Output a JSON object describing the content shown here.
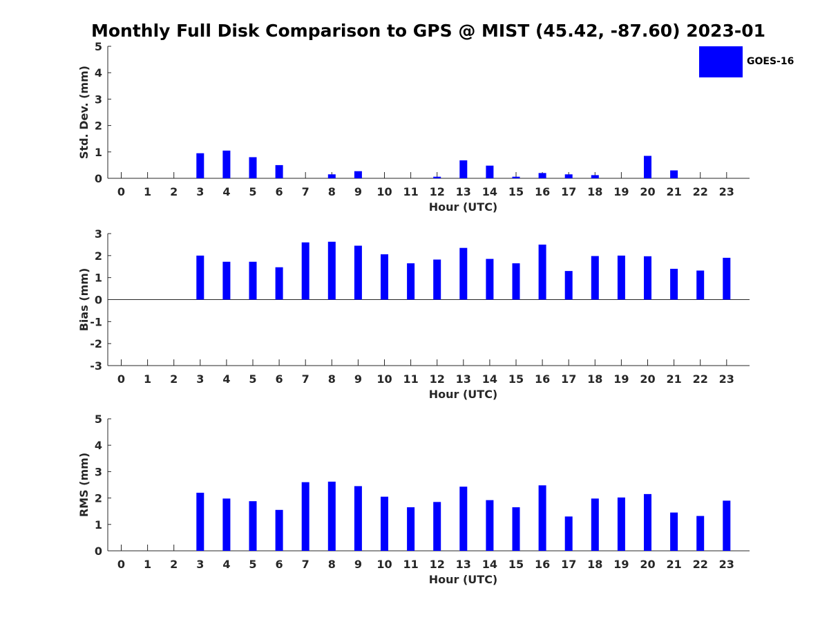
{
  "title": "Monthly Full Disk Comparison to GPS @ MIST (45.42, -87.60) 2023-01",
  "legend": {
    "label": "GOES-16",
    "color": "#0000ff"
  },
  "chart_data": [
    {
      "type": "bar",
      "ylabel": "Std. Dev. (mm)",
      "xlabel": "Hour (UTC)",
      "ylim": [
        0,
        5
      ],
      "yticks": [
        0,
        1,
        2,
        3,
        4,
        5
      ],
      "x": [
        0,
        1,
        2,
        3,
        4,
        5,
        6,
        7,
        8,
        9,
        10,
        11,
        12,
        13,
        14,
        15,
        16,
        17,
        18,
        19,
        20,
        21,
        22,
        23
      ],
      "series": [
        {
          "name": "GOES-16",
          "color": "#0000ff",
          "values": [
            null,
            null,
            null,
            0.95,
            1.05,
            0.8,
            0.5,
            null,
            0.15,
            0.27,
            null,
            null,
            0.06,
            0.68,
            0.48,
            0.06,
            0.2,
            0.15,
            0.12,
            null,
            0.85,
            0.3,
            null,
            null
          ]
        }
      ],
      "legend": "top-right"
    },
    {
      "type": "bar",
      "ylabel": "Bias (mm)",
      "xlabel": "Hour (UTC)",
      "ylim": [
        -3,
        3
      ],
      "yticks": [
        -3,
        -2,
        -1,
        0,
        1,
        2,
        3
      ],
      "x": [
        0,
        1,
        2,
        3,
        4,
        5,
        6,
        7,
        8,
        9,
        10,
        11,
        12,
        13,
        14,
        15,
        16,
        17,
        18,
        19,
        20,
        21,
        22,
        23
      ],
      "series": [
        {
          "name": "GOES-16",
          "color": "#0000ff",
          "values": [
            null,
            null,
            null,
            2.0,
            1.72,
            1.72,
            1.47,
            2.6,
            2.63,
            2.45,
            2.06,
            1.65,
            1.82,
            2.35,
            1.85,
            1.65,
            2.5,
            1.3,
            1.98,
            2.0,
            1.97,
            1.4,
            1.32,
            1.9
          ]
        }
      ]
    },
    {
      "type": "bar",
      "ylabel": "RMS (mm)",
      "xlabel": "Hour (UTC)",
      "ylim": [
        0,
        5
      ],
      "yticks": [
        0,
        1,
        2,
        3,
        4,
        5
      ],
      "x": [
        0,
        1,
        2,
        3,
        4,
        5,
        6,
        7,
        8,
        9,
        10,
        11,
        12,
        13,
        14,
        15,
        16,
        17,
        18,
        19,
        20,
        21,
        22,
        23
      ],
      "series": [
        {
          "name": "GOES-16",
          "color": "#0000ff",
          "values": [
            null,
            null,
            null,
            2.2,
            1.98,
            1.88,
            1.55,
            2.6,
            2.62,
            2.45,
            2.05,
            1.65,
            1.85,
            2.43,
            1.92,
            1.65,
            2.48,
            1.3,
            1.98,
            2.02,
            2.15,
            1.45,
            1.32,
            1.9
          ]
        }
      ]
    }
  ]
}
